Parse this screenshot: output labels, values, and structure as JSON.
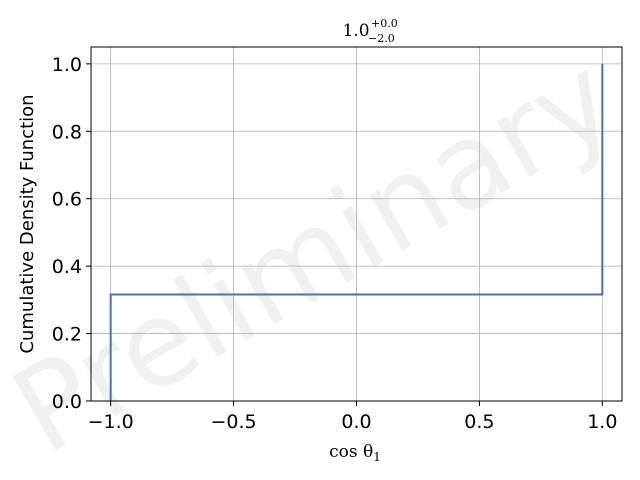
{
  "chart_data": {
    "type": "line",
    "drawstyle": "steps-post",
    "title": {
      "base": "1.0",
      "sup": "+0.0",
      "sub": "−2.0"
    },
    "xlabel": {
      "main": "cos θ",
      "sub": "1"
    },
    "ylabel": "Cumulative Density Function",
    "xlim": [
      -1.08,
      1.08
    ],
    "ylim": [
      0,
      1.05
    ],
    "xticks": [
      -1.0,
      -0.5,
      0.0,
      0.5,
      1.0
    ],
    "xtick_labels": [
      "−1.0",
      "−0.5",
      "0.0",
      "0.5",
      "1.0"
    ],
    "yticks": [
      0.0,
      0.2,
      0.4,
      0.6,
      0.8,
      1.0
    ],
    "ytick_labels": [
      "0.0",
      "0.2",
      "0.4",
      "0.6",
      "0.8",
      "1.0"
    ],
    "grid": true,
    "series": [
      {
        "color": "#4c72b0",
        "points": [
          [
            -1.0,
            0.0
          ],
          [
            -1.0,
            0.316
          ],
          [
            1.0,
            0.316
          ],
          [
            1.0,
            1.0
          ]
        ]
      }
    ],
    "watermark": "Preliminary"
  }
}
